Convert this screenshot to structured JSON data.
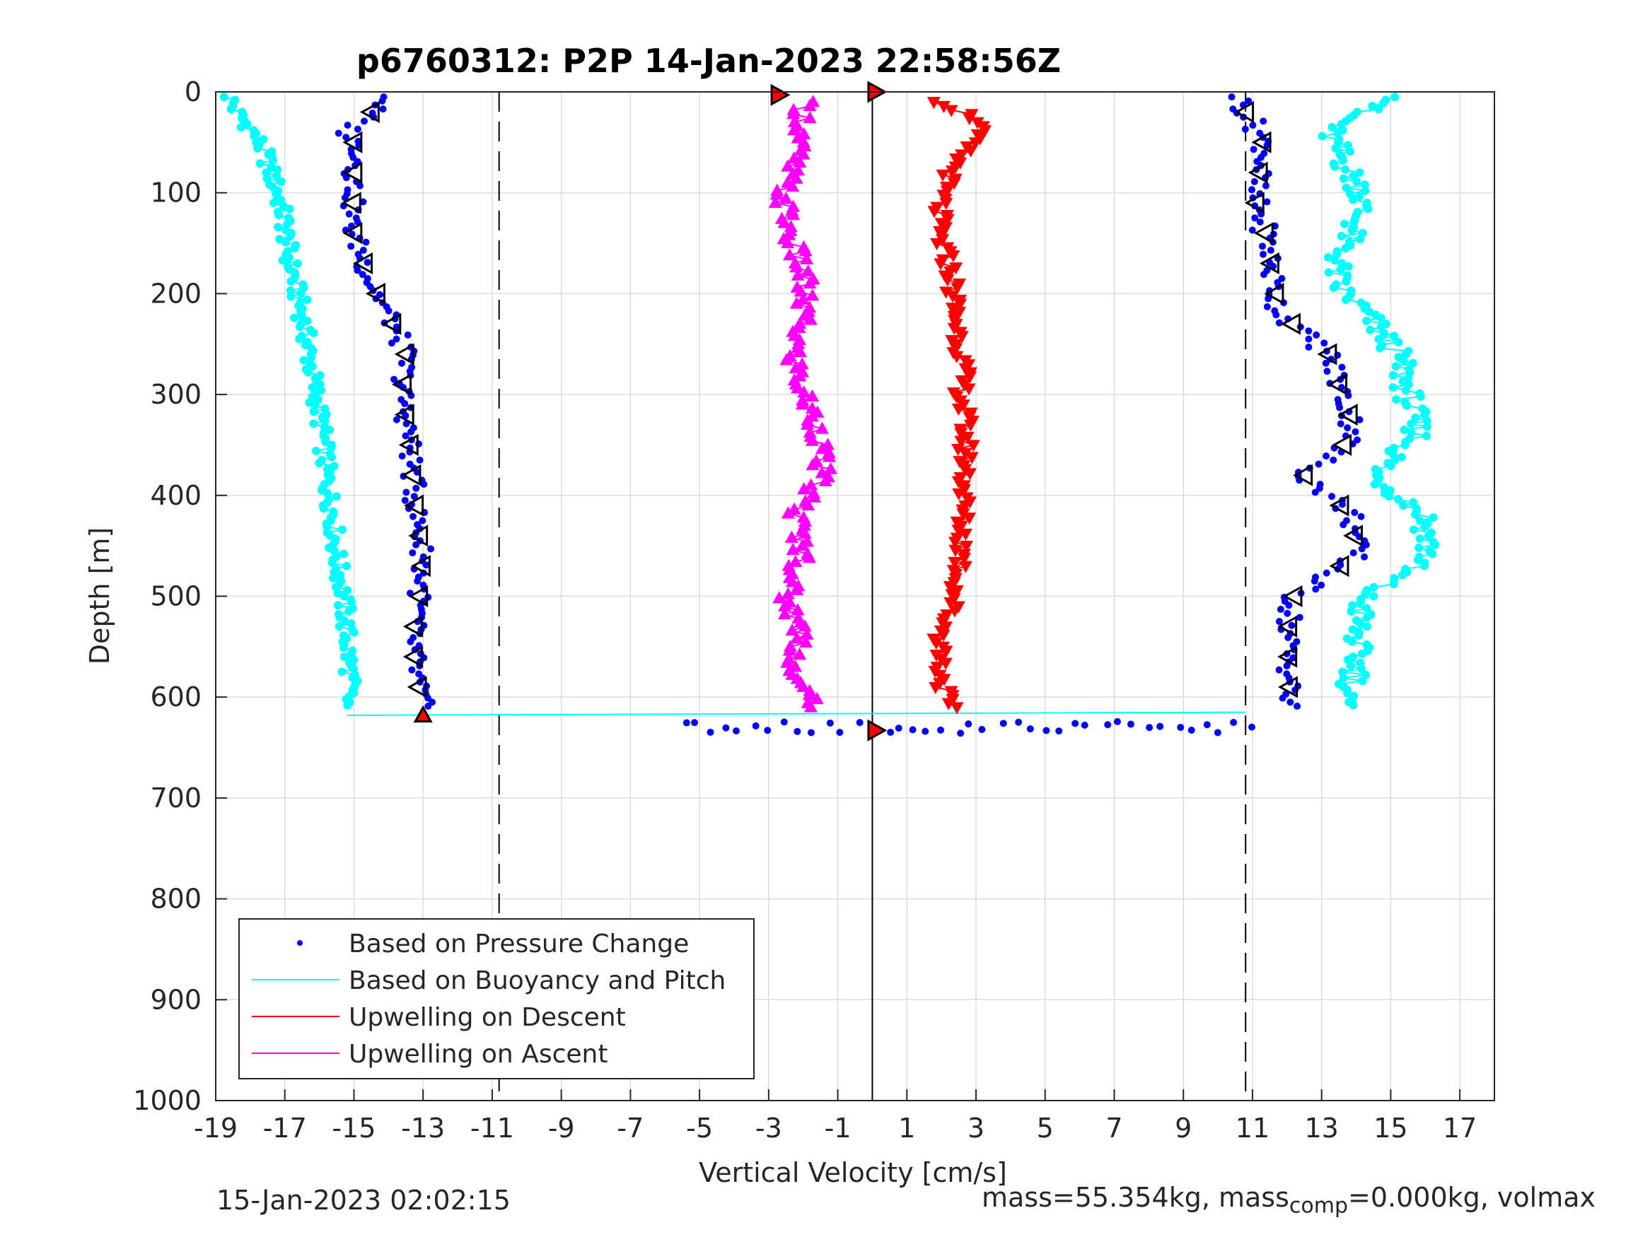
{
  "chart_data": {
    "type": "scatter",
    "title": "p6760312: P2P 14-Jan-2023 22:58:56Z",
    "xlabel": "Vertical Velocity [cm/s]",
    "ylabel": "Depth [m]",
    "xlim": [
      -19,
      18
    ],
    "ylim": [
      0,
      1000
    ],
    "y_reversed": true,
    "grid": true,
    "x_ticks": [
      "-19",
      "-17",
      "-15",
      "-13",
      "-11",
      "-9",
      "-7",
      "-5",
      "-3",
      "-1",
      "1",
      "3",
      "5",
      "7",
      "9",
      "11",
      "13",
      "15",
      "17"
    ],
    "y_ticks": [
      "0",
      "100",
      "200",
      "300",
      "400",
      "500",
      "600",
      "700",
      "800",
      "900",
      "1000"
    ],
    "vertical_lines": [
      {
        "x": -10.8,
        "style": "dashed"
      },
      {
        "x": 0,
        "style": "solid"
      },
      {
        "x": 10.8,
        "style": "dashed"
      }
    ],
    "legend": {
      "placement": "bottom-left",
      "entries": [
        {
          "label": "Based on Pressure Change",
          "color": "#0000ff",
          "marker": "dot"
        },
        {
          "label": "Based on Buoyancy and Pitch",
          "color": "#00ffff",
          "marker": "line"
        },
        {
          "label": "Upwelling on Descent",
          "color": "#ff0000",
          "marker": "line"
        },
        {
          "label": "Upwelling on Ascent",
          "color": "#ff00ff",
          "marker": "line"
        }
      ]
    },
    "series": [
      {
        "name": "Based on Buoyancy and Pitch",
        "color": "#00ffff",
        "depth": [
          5,
          20,
          40,
          60,
          80,
          100,
          130,
          160,
          190,
          220,
          260,
          300,
          340,
          380,
          420,
          460,
          500,
          540,
          580,
          610
        ],
        "x_descent": [
          -18.6,
          -18.4,
          -17.9,
          -17.6,
          -17.4,
          -17.2,
          -17.0,
          -16.9,
          -16.7,
          -16.5,
          -16.3,
          -16.1,
          -15.9,
          -15.8,
          -15.6,
          -15.5,
          -15.3,
          -15.2,
          -15.1,
          -15.2
        ],
        "x_ascent": [
          15.5,
          14.0,
          13.2,
          13.5,
          13.8,
          14.2,
          14.0,
          13.5,
          13.4,
          14.3,
          15.2,
          15.5,
          15.8,
          14.5,
          16.0,
          16.1,
          14.2,
          14.0,
          14.0,
          13.5
        ]
      },
      {
        "name": "Based on Pressure Change",
        "color": "#0000ff",
        "depth": [
          5,
          20,
          40,
          60,
          80,
          100,
          130,
          160,
          190,
          220,
          260,
          300,
          340,
          380,
          420,
          460,
          500,
          540,
          580,
          610
        ],
        "x_descent": [
          -14.0,
          -14.5,
          -15.2,
          -14.8,
          -15.0,
          -15.0,
          -15.1,
          -14.8,
          -14.5,
          -14.0,
          -13.5,
          -13.6,
          -13.4,
          -13.3,
          -13.2,
          -13.0,
          -13.1,
          -13.3,
          -13.2,
          -13.0
        ],
        "x_ascent": [
          10.6,
          10.8,
          11.2,
          11.4,
          11.2,
          11.0,
          11.3,
          11.5,
          11.6,
          11.8,
          13.2,
          13.6,
          14.0,
          12.5,
          13.9,
          14.0,
          12.2,
          12.0,
          12.1,
          12.0
        ]
      },
      {
        "name": "Upwelling on Descent",
        "color": "#ff0000",
        "depth": [
          10,
          30,
          60,
          100,
          140,
          180,
          220,
          260,
          300,
          340,
          380,
          420,
          460,
          500,
          540,
          580,
          610
        ],
        "x": [
          2.0,
          3.2,
          2.6,
          2.0,
          1.9,
          2.3,
          2.4,
          2.6,
          2.6,
          2.7,
          2.7,
          2.6,
          2.6,
          2.4,
          2.0,
          2.0,
          2.2
        ]
      },
      {
        "name": "Upwelling on Ascent",
        "color": "#ff00ff",
        "depth": [
          10,
          30,
          60,
          100,
          140,
          180,
          220,
          260,
          300,
          340,
          380,
          420,
          460,
          500,
          540,
          580,
          610
        ],
        "x": [
          -2.0,
          -2.0,
          -2.2,
          -2.6,
          -2.4,
          -2.0,
          -2.0,
          -2.3,
          -2.0,
          -1.5,
          -1.5,
          -2.2,
          -2.0,
          -2.5,
          -2.0,
          -2.4,
          -1.5
        ]
      }
    ]
  },
  "footer": {
    "timestamp": "15-Jan-2023 02:02:15",
    "mass_text": "mass=55.354kg, mass",
    "mass_sub": "comp",
    "mass_tail": "=0.000kg, volmax"
  }
}
